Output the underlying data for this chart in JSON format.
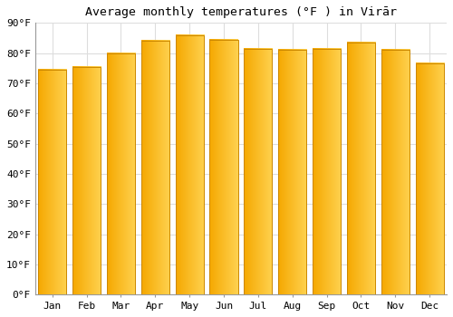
{
  "months": [
    "Jan",
    "Feb",
    "Mar",
    "Apr",
    "May",
    "Jun",
    "Jul",
    "Aug",
    "Sep",
    "Oct",
    "Nov",
    "Dec"
  ],
  "values": [
    74.5,
    75.5,
    80.0,
    84.0,
    86.0,
    84.5,
    81.5,
    81.0,
    81.5,
    83.5,
    81.0,
    76.5
  ],
  "bar_color_left": "#F5A800",
  "bar_color_right": "#FFD966",
  "bar_color_mid": "#FFBB33",
  "bar_edge_color": "#CC8800",
  "background_color": "#FFFFFF",
  "grid_color": "#DDDDDD",
  "title": "Average monthly temperatures (°F ) in Virār",
  "title_fontsize": 9.5,
  "tick_fontsize": 8,
  "ylim": [
    0,
    90
  ],
  "yticks": [
    0,
    10,
    20,
    30,
    40,
    50,
    60,
    70,
    80,
    90
  ],
  "ytick_labels": [
    "0°F",
    "10°F",
    "20°F",
    "30°F",
    "40°F",
    "50°F",
    "60°F",
    "70°F",
    "80°F",
    "90°F"
  ]
}
